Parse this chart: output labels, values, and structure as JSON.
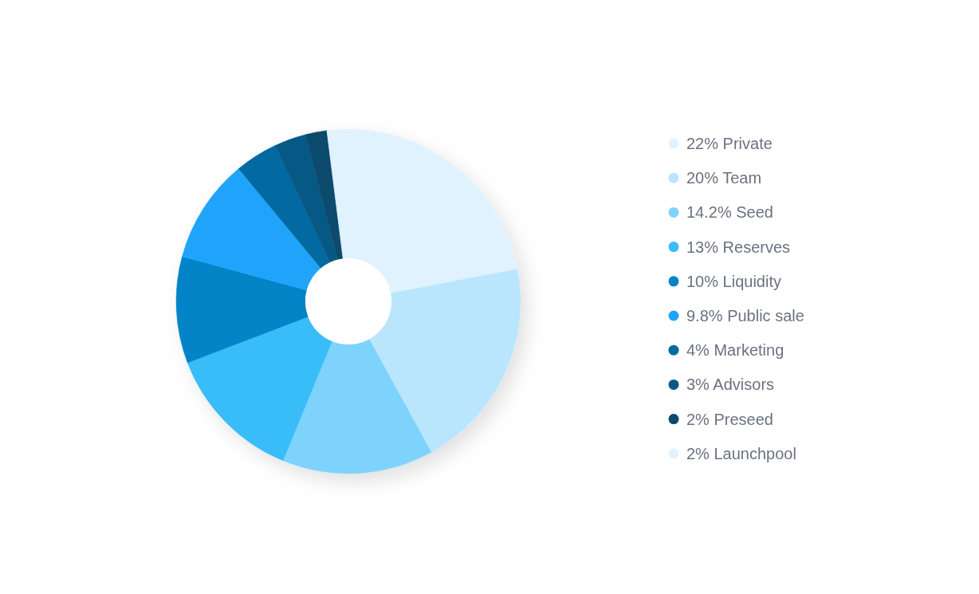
{
  "chart_data": {
    "type": "donut",
    "categories": [
      "Private",
      "Team",
      "Seed",
      "Reserves",
      "Liquidity",
      "Public sale",
      "Marketing",
      "Advisors",
      "Preseed",
      "Launchpool"
    ],
    "values": [
      22,
      20,
      14.2,
      13,
      10,
      9.8,
      4,
      3,
      2,
      2
    ],
    "value_labels": [
      "22%",
      "20%",
      "14.2%",
      "13%",
      "10%",
      "9.8%",
      "4%",
      "3%",
      "2%",
      "2%"
    ],
    "colors": [
      "#e0f2fe",
      "#bae6fd",
      "#7dd3fc",
      "#38bdf8",
      "#0284c7",
      "#20a4fb",
      "#0369a1",
      "#075985",
      "#0c4a6e",
      "#e0f2fe"
    ],
    "legend": "right"
  }
}
